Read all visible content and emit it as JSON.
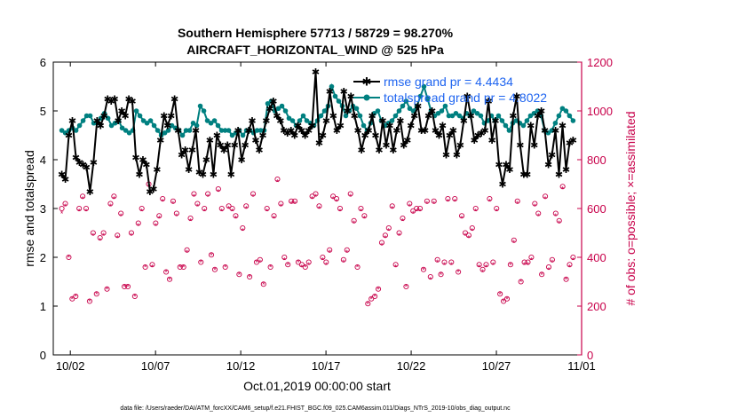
{
  "chart_data": {
    "type": "line",
    "title_line1": "Southern Hemisphere 57713 / 58729 = 98.270%",
    "title_line2": "AIRCRAFT_HORIZONTAL_WIND @ 525 hPa",
    "xlabel": "Oct.01,2019 00:00:00 start",
    "ylabel_left": "rmse and totalspread",
    "ylabel_right": "# of obs: o=possible; ×=assimilated",
    "footnote": "data file: /Users/raeder/DAI/ATM_forcXX/CAM6_setup/f.e21.FHIST_BGC.f09_025.CAM6assim.011/Diags_NTrS_2019-10/obs_diag_output.nc",
    "x_tick_labels": [
      "10/02",
      "10/07",
      "10/12",
      "10/17",
      "10/22",
      "10/27",
      "11/01"
    ],
    "x_tick_days": [
      1,
      6,
      11,
      16,
      21,
      26,
      31
    ],
    "xlim": [
      0,
      31
    ],
    "ylim_left": [
      0,
      6
    ],
    "ylim_right": [
      0,
      1200
    ],
    "y_ticks_left": [
      "0",
      "1",
      "2",
      "3",
      "4",
      "5",
      "6"
    ],
    "y_ticks_right": [
      "0",
      "200",
      "400",
      "600",
      "800",
      "1000",
      "1200"
    ],
    "grid": false,
    "legend_position": "top-right",
    "colors": {
      "rmse": "#000000",
      "spread": "#008080",
      "obs": "#c8004a",
      "legend_text": "#1e64f0"
    },
    "series": [
      {
        "name": "rmse grand pr = 4.4434",
        "values": [
          3.7,
          3.6,
          4.5,
          4.8,
          4.05,
          3.95,
          3.9,
          3.85,
          3.35,
          3.95,
          4.8,
          4.7,
          4.9,
          5.25,
          5.2,
          5.25,
          4.8,
          5.0,
          4.9,
          5.25,
          5.2,
          4.05,
          3.7,
          4.0,
          3.9,
          3.35,
          3.4,
          3.8,
          4.4,
          4.9,
          4.7,
          4.9,
          5.25,
          4.6,
          4.1,
          4.2,
          3.8,
          4.2,
          4.6,
          3.75,
          3.7,
          4.0,
          4.4,
          3.7,
          4.5,
          4.3,
          4.2,
          4.3,
          3.7,
          4.3,
          4.6,
          4.0,
          4.3,
          4.6,
          4.8,
          4.4,
          4.2,
          4.5,
          4.8,
          5.05,
          5.2,
          4.9,
          4.8,
          4.6,
          4.55,
          4.6,
          4.5,
          4.7,
          4.6,
          4.5,
          4.6,
          4.7,
          5.8,
          4.35,
          4.5,
          4.8,
          5.4,
          4.9,
          4.6,
          4.7,
          5.4,
          5.0,
          5.3,
          4.9,
          4.6,
          4.2,
          4.5,
          4.6,
          4.9,
          4.5,
          4.2,
          4.8,
          4.3,
          4.7,
          4.2,
          4.6,
          4.8,
          4.3,
          4.4,
          4.7,
          4.9,
          5.1,
          4.6,
          4.6,
          4.9,
          5.0,
          4.6,
          4.5,
          4.7,
          4.1,
          4.5,
          4.6,
          4.1,
          4.3,
          4.8,
          5.3,
          4.9,
          4.4,
          4.5,
          4.55,
          4.6,
          5.2,
          4.4,
          4.8,
          3.9,
          3.5,
          3.9,
          3.8,
          4.9,
          5.3,
          4.3,
          3.7,
          3.7,
          4.7,
          4.3,
          4.9,
          5.0,
          4.6,
          3.9,
          4.1,
          4.6,
          3.7,
          4.7,
          3.8,
          4.35,
          4.4
        ]
      },
      {
        "name": "totalspread grand pr = 4.8022",
        "values": [
          4.6,
          4.55,
          4.6,
          4.65,
          4.6,
          4.7,
          4.8,
          4.9,
          4.9,
          4.75,
          4.75,
          4.85,
          4.95,
          4.85,
          4.7,
          4.75,
          4.8,
          4.65,
          4.6,
          4.55,
          4.6,
          5.0,
          4.9,
          4.8,
          4.75,
          4.8,
          4.7,
          4.6,
          4.5,
          4.55,
          4.6,
          4.7,
          4.65,
          4.6,
          4.5,
          4.6,
          4.6,
          4.75,
          4.7,
          5.1,
          5.0,
          4.8,
          4.75,
          4.8,
          4.7,
          4.6,
          4.6,
          4.6,
          4.5,
          4.55,
          4.6,
          4.5,
          4.6,
          4.6,
          4.55,
          4.6,
          4.6,
          4.6,
          5.15,
          5.2,
          5.0,
          5.05,
          5.1,
          5.0,
          4.85,
          4.8,
          4.7,
          4.8,
          4.9,
          4.8,
          4.75,
          4.7,
          4.8,
          4.9,
          5.0,
          5.1,
          5.5,
          5.3,
          5.2,
          5.1,
          4.9,
          5.0,
          5.1,
          5.05,
          4.9,
          4.7,
          4.6,
          4.75,
          4.95,
          5.0,
          4.8,
          4.7,
          4.75,
          4.8,
          4.9,
          5.0,
          5.1,
          5.2,
          5.05,
          5.0,
          5.1,
          5.3,
          5.5,
          5.25,
          5.0,
          4.9,
          4.95,
          5.0,
          5.1,
          4.9,
          4.9,
          4.95,
          4.9,
          4.85,
          4.95,
          4.9,
          5.0,
          4.95,
          4.9,
          4.75,
          4.8,
          4.9,
          4.8,
          4.9,
          4.8,
          4.7,
          4.6,
          4.75,
          4.8,
          4.75,
          4.7,
          4.8,
          4.9,
          4.95,
          5.0,
          4.9,
          4.6,
          4.55,
          4.6,
          4.75,
          4.9,
          5.05,
          5.0,
          4.9,
          4.8
        ]
      },
      {
        "name": "obs possible",
        "values": [
          600,
          620,
          400,
          230,
          240,
          600,
          650,
          600,
          220,
          500,
          250,
          480,
          500,
          270,
          620,
          650,
          490,
          580,
          280,
          280,
          500,
          240,
          540,
          600,
          360,
          700,
          370,
          540,
          570,
          640,
          340,
          310,
          630,
          580,
          360,
          360,
          430,
          560,
          660,
          620,
          380,
          600,
          660,
          410,
          350,
          680,
          600,
          360,
          610,
          600,
          570,
          330,
          520,
          610,
          320,
          660,
          380,
          390,
          290,
          600,
          360,
          570,
          720,
          620,
          400,
          370,
          630,
          630,
          380,
          370,
          360,
          380,
          650,
          660,
          610,
          400,
          380,
          430,
          650,
          640,
          600,
          390,
          430,
          660,
          550,
          360,
          600,
          570,
          210,
          230,
          240,
          270,
          460,
          490,
          520,
          610,
          370,
          500,
          560,
          280,
          620,
          590,
          600,
          600,
          350,
          630,
          320,
          630,
          390,
          330,
          380,
          640,
          380,
          640,
          340,
          570,
          500,
          490,
          520,
          600,
          370,
          350,
          370,
          640,
          380,
          600,
          250,
          220,
          230,
          370,
          470,
          630,
          300,
          380,
          380,
          400,
          620,
          580,
          330,
          650,
          360,
          390,
          580,
          550,
          690,
          310,
          370,
          400
        ]
      },
      {
        "name": "obs assimilated",
        "values": [
          580,
          610,
          400,
          230,
          240,
          590,
          640,
          590,
          220,
          490,
          250,
          470,
          490,
          270,
          610,
          640,
          480,
          570,
          280,
          280,
          490,
          240,
          530,
          590,
          360,
          690,
          360,
          530,
          560,
          630,
          340,
          310,
          620,
          570,
          360,
          360,
          420,
          550,
          650,
          610,
          380,
          590,
          650,
          410,
          350,
          670,
          590,
          360,
          600,
          590,
          560,
          330,
          510,
          600,
          320,
          650,
          380,
          380,
          290,
          590,
          360,
          560,
          710,
          610,
          390,
          370,
          620,
          620,
          380,
          360,
          360,
          370,
          640,
          650,
          600,
          390,
          370,
          420,
          640,
          630,
          590,
          380,
          420,
          650,
          540,
          360,
          590,
          560,
          210,
          230,
          240,
          270,
          450,
          480,
          510,
          600,
          360,
          490,
          550,
          280,
          610,
          580,
          590,
          590,
          350,
          620,
          310,
          620,
          380,
          330,
          370,
          630,
          370,
          630,
          340,
          560,
          490,
          480,
          510,
          590,
          360,
          340,
          360,
          630,
          370,
          590,
          250,
          220,
          230,
          370,
          460,
          620,
          300,
          370,
          370,
          390,
          610,
          570,
          330,
          640,
          350,
          380,
          570,
          540,
          680,
          310,
          360,
          390
        ]
      }
    ]
  }
}
